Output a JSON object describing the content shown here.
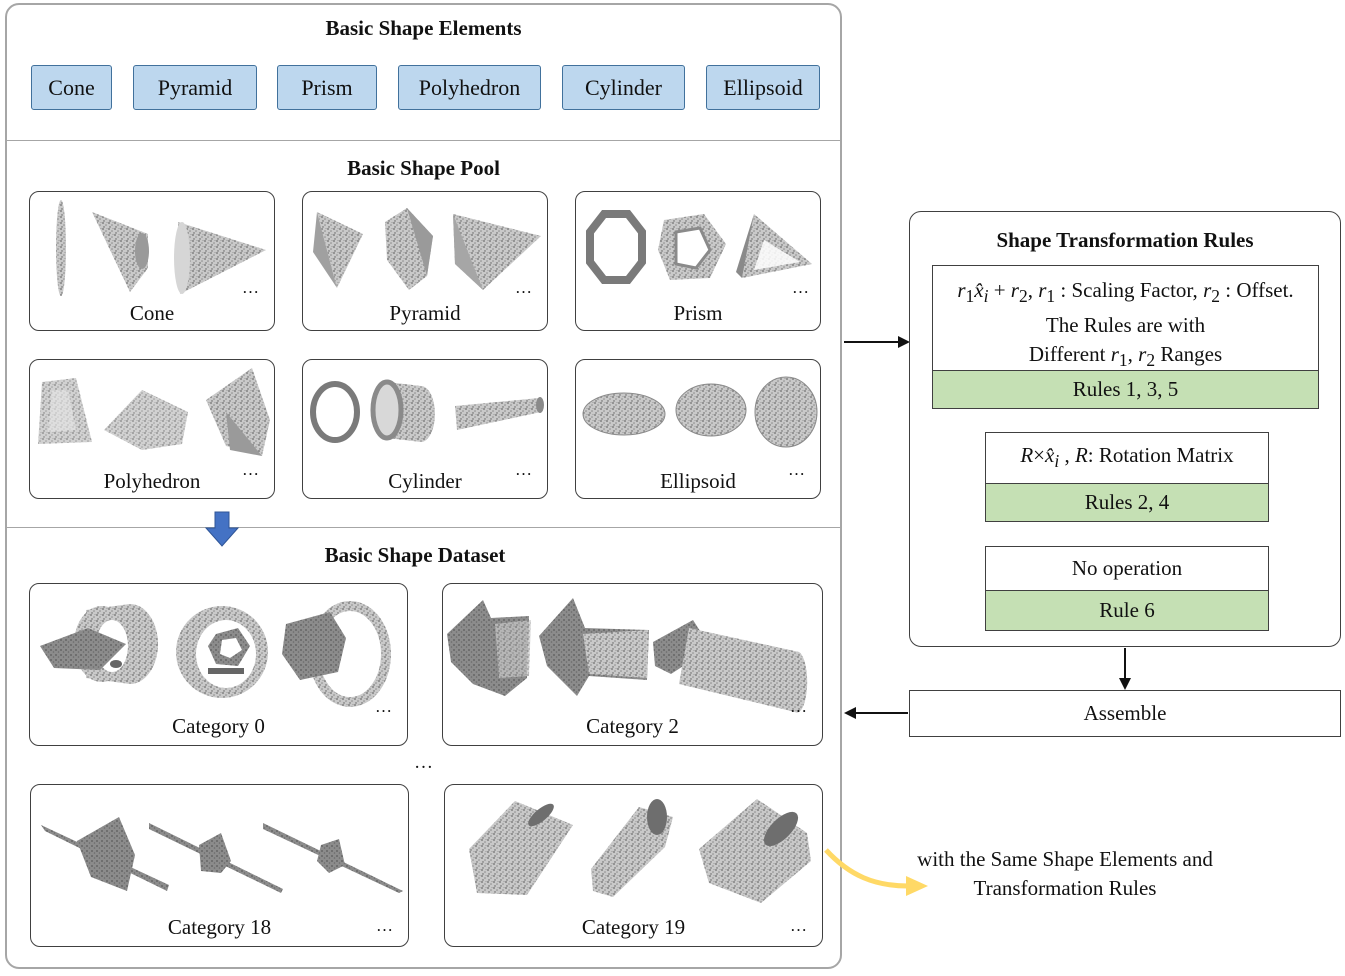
{
  "elements": {
    "title": "Basic Shape Elements",
    "items": [
      "Cone",
      "Pyramid",
      "Prism",
      "Polyhedron",
      "Cylinder",
      "Ellipsoid"
    ]
  },
  "pool": {
    "title": "Basic Shape Pool",
    "cards": [
      "Cone",
      "Pyramid",
      "Prism",
      "Polyhedron",
      "Cylinder",
      "Ellipsoid"
    ],
    "ellipsis": "…"
  },
  "dataset": {
    "title": "Basic Shape Dataset",
    "categories": [
      "Category 0",
      "Category 2",
      "Category 18",
      "Category 19"
    ],
    "between_ellipsis": "…",
    "ellipsis": "…"
  },
  "rules": {
    "title": "Shape Transformation Rules",
    "scaling_desc": ": Scaling Factor,",
    "offset_desc": ": Offset.",
    "line2": "The Rules are with",
    "line3_a": "Different",
    "line3_b": "Ranges",
    "rules_1": "Rules 1, 3, 5",
    "rotation_desc": "Rotation Matrix",
    "rules_2": "Rules 2, 4",
    "no_op": "No operation",
    "rule_6": "Rule 6"
  },
  "assemble": "Assemble",
  "note": {
    "line1": "with the Same Shape Elements and",
    "line2": "Transformation Rules"
  },
  "colors": {
    "element_fill": "#bdd7ee",
    "element_border": "#41719c",
    "rule_green": "#c5e0b4",
    "down_arrow": "#4472c4",
    "curved_arrow": "#ffd966",
    "point_cloud": "#7f7f7f"
  }
}
